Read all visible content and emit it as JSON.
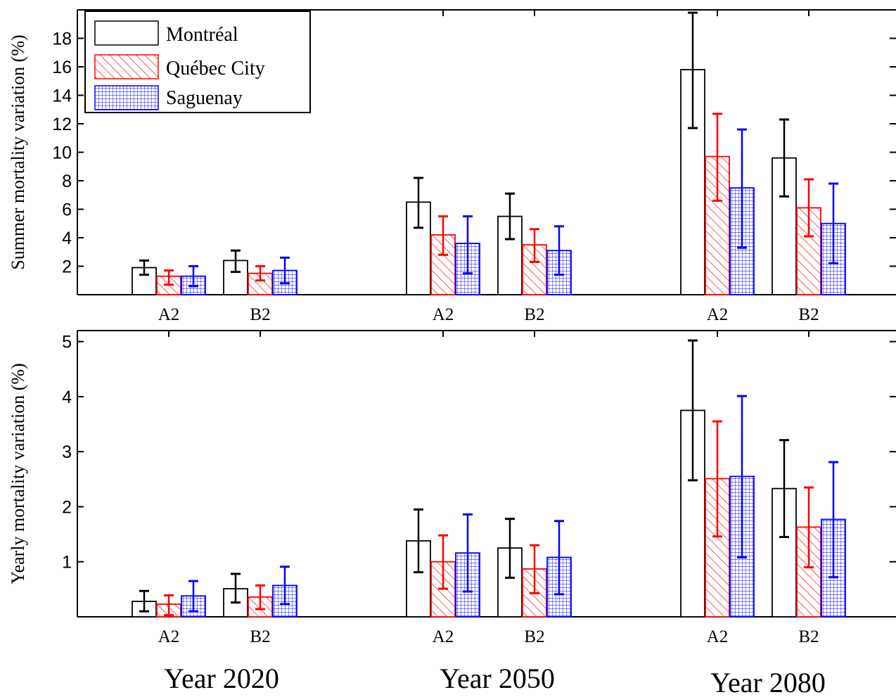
{
  "chart_data": [
    {
      "type": "bar",
      "panel": "top",
      "ylabel": "Summer mortality variation (%)",
      "ylim": [
        0,
        20
      ],
      "yticks": [
        2,
        4,
        6,
        8,
        10,
        12,
        14,
        16,
        18
      ],
      "groups": [
        {
          "label": "Year 2020",
          "scenarios": [
            "A2",
            "B2"
          ]
        },
        {
          "label": "Year 2050",
          "scenarios": [
            "A2",
            "B2"
          ]
        },
        {
          "label": "Year 2080",
          "scenarios": [
            "A2",
            "B2"
          ]
        }
      ],
      "categories": [
        "2020 A2",
        "2020 B2",
        "2050 A2",
        "2050 B2",
        "2080 A2",
        "2080 B2"
      ],
      "series": [
        {
          "name": "Montréal",
          "color": "#000000",
          "pattern": "none",
          "values": [
            1.9,
            2.4,
            6.5,
            5.5,
            15.8,
            9.6
          ],
          "err_low": [
            1.4,
            1.6,
            4.7,
            3.9,
            11.7,
            6.9
          ],
          "err_high": [
            2.4,
            3.1,
            8.2,
            7.1,
            19.8,
            12.3
          ]
        },
        {
          "name": "Québec City",
          "color": "#ff0000",
          "pattern": "diagonal-hatch",
          "values": [
            1.3,
            1.5,
            4.2,
            3.5,
            9.7,
            6.1
          ],
          "err_low": [
            0.7,
            1.0,
            2.8,
            2.3,
            6.6,
            4.1
          ],
          "err_high": [
            1.7,
            2.0,
            5.5,
            4.6,
            12.7,
            8.1
          ]
        },
        {
          "name": "Saguenay",
          "color": "#0000ff",
          "pattern": "grid-hatch",
          "values": [
            1.3,
            1.7,
            3.6,
            3.1,
            7.5,
            5.0
          ],
          "err_low": [
            0.6,
            0.8,
            1.5,
            1.4,
            3.3,
            2.2
          ],
          "err_high": [
            2.0,
            2.6,
            5.5,
            4.8,
            11.6,
            7.8
          ]
        }
      ],
      "legend": "top-left"
    },
    {
      "type": "bar",
      "panel": "bottom",
      "ylabel": "Yearly mortality variation (%)",
      "ylim": [
        0,
        5.2
      ],
      "yticks": [
        1,
        2,
        3,
        4,
        5
      ],
      "groups": [
        {
          "label": "Year 2020",
          "scenarios": [
            "A2",
            "B2"
          ]
        },
        {
          "label": "Year 2050",
          "scenarios": [
            "A2",
            "B2"
          ]
        },
        {
          "label": "Year 2080",
          "scenarios": [
            "A2",
            "B2"
          ]
        }
      ],
      "categories": [
        "2020 A2",
        "2020 B2",
        "2050 A2",
        "2050 B2",
        "2080 A2",
        "2080 B2"
      ],
      "series": [
        {
          "name": "Montréal",
          "color": "#000000",
          "pattern": "none",
          "values": [
            0.28,
            0.51,
            1.38,
            1.25,
            3.75,
            2.33
          ],
          "err_low": [
            0.1,
            0.26,
            0.81,
            0.71,
            2.48,
            1.45
          ],
          "err_high": [
            0.47,
            0.78,
            1.95,
            1.78,
            5.02,
            3.21
          ]
        },
        {
          "name": "Québec City",
          "color": "#ff0000",
          "pattern": "diagonal-hatch",
          "values": [
            0.23,
            0.36,
            1.0,
            0.87,
            2.51,
            1.63
          ],
          "err_low": [
            0.03,
            0.14,
            0.51,
            0.43,
            1.46,
            0.9
          ],
          "err_high": [
            0.39,
            0.57,
            1.48,
            1.3,
            3.55,
            2.35
          ]
        },
        {
          "name": "Saguenay",
          "color": "#0000ff",
          "pattern": "grid-hatch",
          "values": [
            0.38,
            0.57,
            1.16,
            1.08,
            2.55,
            1.77
          ],
          "err_low": [
            0.1,
            0.23,
            0.46,
            0.41,
            1.08,
            0.72
          ],
          "err_high": [
            0.65,
            0.91,
            1.86,
            1.74,
            4.01,
            2.81
          ]
        }
      ],
      "legend": "none"
    }
  ],
  "group_labels": [
    "Year 2020",
    "Year 2050",
    "Year 2080"
  ],
  "scenario_labels": [
    "A2",
    "B2"
  ],
  "legend": {
    "items": [
      {
        "label": "Montréal",
        "color": "#000000",
        "pattern": "none"
      },
      {
        "label": "Québec City",
        "color": "#ff0000",
        "pattern": "diagonal-hatch"
      },
      {
        "label": "Saguenay",
        "color": "#0000ff",
        "pattern": "grid-hatch"
      }
    ]
  }
}
